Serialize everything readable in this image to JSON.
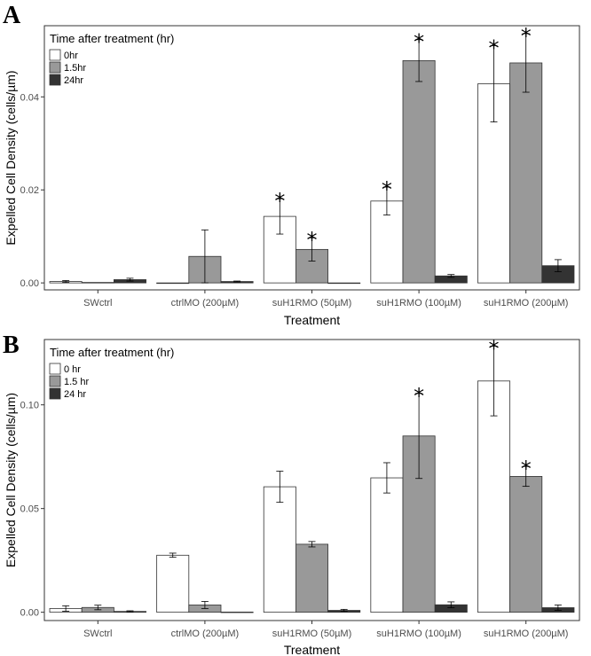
{
  "colors": {
    "0": "#ffffff",
    "1.5": "#999999",
    "24": "#333333",
    "panel_border": "#333333",
    "error_bar": "#000000"
  },
  "chart_data": [
    {
      "panel": "A",
      "type": "bar",
      "legend_title": "Time after treatment (hr)",
      "legend_position": "top-left",
      "xlabel": "Treatment",
      "ylabel": "Expelled Cell Density (cells/µm)",
      "ylim": [
        -0.0015,
        0.0553
      ],
      "yticks": [
        0.0,
        0.02,
        0.04
      ],
      "ytick_labels": [
        "0.00",
        "0.02",
        "0.04"
      ],
      "categories": [
        "SWctrl",
        "ctrlMO (200µM)",
        "suH1RMO (50µM)",
        "suH1RMO (100µM)",
        "suH1RMO (200µM)"
      ],
      "series": [
        {
          "name": "0hr",
          "color_key": "0",
          "values": [
            0.0003,
            0.0,
            0.0143,
            0.0176,
            0.0428
          ],
          "errors": [
            0.0002,
            0.0,
            0.0038,
            0.003,
            0.0082
          ],
          "significant": [
            false,
            false,
            true,
            true,
            true
          ]
        },
        {
          "name": "1.5hr",
          "color_key": "1.5",
          "values": [
            0.0001,
            0.0057,
            0.0072,
            0.0478,
            0.0473
          ],
          "errors": [
            0.0,
            0.0057,
            0.0025,
            0.0045,
            0.0063
          ],
          "significant": [
            false,
            false,
            true,
            true,
            true
          ]
        },
        {
          "name": "24hr",
          "color_key": "24",
          "values": [
            0.0007,
            0.0003,
            0.0,
            0.0015,
            0.0037
          ],
          "errors": [
            0.0003,
            0.0001,
            0.0,
            0.0003,
            0.0013
          ],
          "significant": [
            false,
            false,
            false,
            false,
            false
          ]
        }
      ]
    },
    {
      "panel": "B",
      "type": "bar",
      "legend_title": "Time after treatment (hr)",
      "legend_position": "top-left",
      "xlabel": "Treatment",
      "ylabel": "Expelled Cell Density (cells/µm)",
      "ylim": [
        -0.004,
        0.1315
      ],
      "yticks": [
        0.0,
        0.05,
        0.1
      ],
      "ytick_labels": [
        "0.00",
        "0.05",
        "0.10"
      ],
      "categories": [
        "SWctrl",
        "ctrlMO (200µM)",
        "suH1RMO (50µM)",
        "suH1RMO (100µM)",
        "suH1RMO (200µM)"
      ],
      "series": [
        {
          "name": "0 hr",
          "color_key": "0",
          "values": [
            0.0018,
            0.0275,
            0.0605,
            0.0648,
            0.1115
          ],
          "errors": [
            0.0013,
            0.001,
            0.0075,
            0.0073,
            0.0168
          ],
          "significant": [
            false,
            false,
            false,
            false,
            true
          ]
        },
        {
          "name": "1.5 hr",
          "color_key": "1.5",
          "values": [
            0.0023,
            0.0035,
            0.0328,
            0.085,
            0.0655
          ],
          "errors": [
            0.0011,
            0.0017,
            0.0013,
            0.0205,
            0.0048
          ],
          "significant": [
            false,
            false,
            false,
            true,
            true
          ]
        },
        {
          "name": "24 hr",
          "color_key": "24",
          "values": [
            0.0004,
            0.0001,
            0.0009,
            0.0036,
            0.0022
          ],
          "errors": [
            0.0003,
            0.0,
            0.0005,
            0.0014,
            0.0013
          ],
          "significant": [
            false,
            false,
            false,
            false,
            false
          ]
        }
      ]
    }
  ]
}
